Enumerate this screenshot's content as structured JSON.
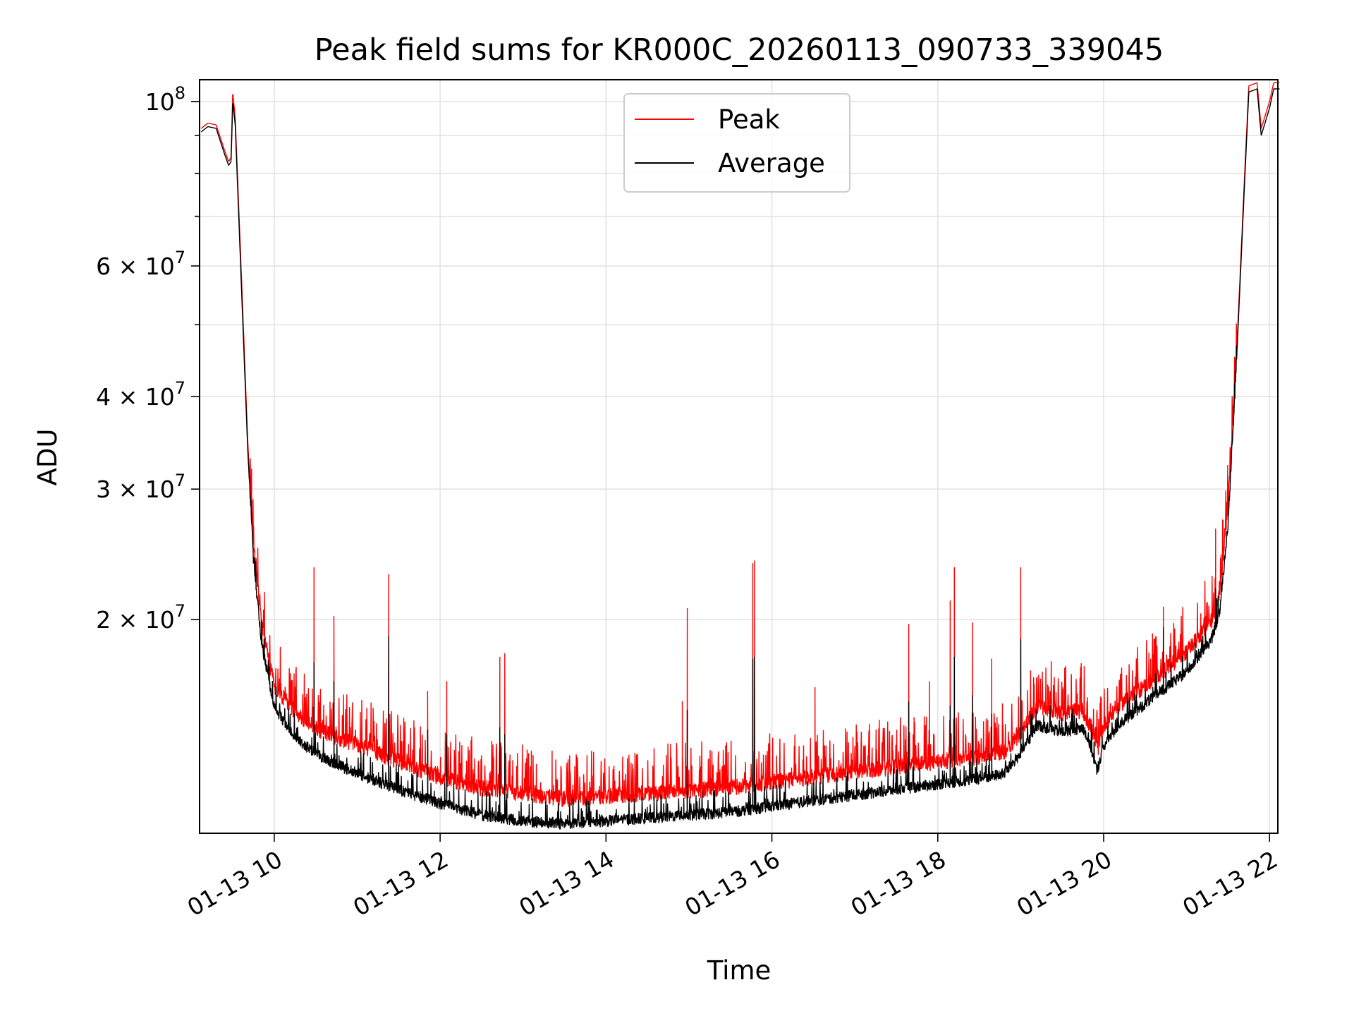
{
  "chart_data": {
    "type": "line",
    "title": "Peak field sums for KR000C_20260113_090733_339045",
    "xlabel": "Time",
    "ylabel": "ADU",
    "y_scale": "log",
    "xlim_hours": [
      9.1,
      22.1
    ],
    "ylim": [
      10300000,
      107000000
    ],
    "grid": true,
    "legend_position": "upper center",
    "x_ticks": [
      {
        "value": 10,
        "label": "01-13 10"
      },
      {
        "value": 12,
        "label": "01-13 12"
      },
      {
        "value": 14,
        "label": "01-13 14"
      },
      {
        "value": 16,
        "label": "01-13 16"
      },
      {
        "value": 18,
        "label": "01-13 18"
      },
      {
        "value": 20,
        "label": "01-13 20"
      },
      {
        "value": 22,
        "label": "01-13 22"
      }
    ],
    "y_ticks": [
      {
        "value": 100000000,
        "base": "10",
        "exp": "8"
      },
      {
        "value": 60000000,
        "base": "6 × 10",
        "exp": "7"
      },
      {
        "value": 40000000,
        "base": "4 × 10",
        "exp": "7"
      },
      {
        "value": 30000000,
        "base": "3 × 10",
        "exp": "7"
      },
      {
        "value": 20000000,
        "base": "2 × 10",
        "exp": "7"
      }
    ],
    "y_minor_ticks": [
      90000000,
      80000000,
      70000000,
      50000000
    ],
    "series": [
      {
        "name": "Peak",
        "color": "#ff0000",
        "baseline": [
          [
            9.12,
            92000000
          ],
          [
            9.2,
            93500000
          ],
          [
            9.3,
            93000000
          ],
          [
            9.4,
            86000000
          ],
          [
            9.45,
            83000000
          ],
          [
            9.48,
            84000000
          ],
          [
            9.5,
            103000000
          ],
          [
            9.53,
            95000000
          ],
          [
            9.6,
            60000000
          ],
          [
            9.68,
            35000000
          ],
          [
            9.75,
            25000000
          ],
          [
            9.85,
            19500000
          ],
          [
            10.0,
            16200000
          ],
          [
            10.3,
            14700000
          ],
          [
            10.6,
            14000000
          ],
          [
            11.0,
            13500000
          ],
          [
            11.5,
            12800000
          ],
          [
            12.0,
            12200000
          ],
          [
            12.5,
            11800000
          ],
          [
            13.0,
            11600000
          ],
          [
            13.5,
            11400000
          ],
          [
            14.0,
            11500000
          ],
          [
            14.5,
            11600000
          ],
          [
            15.0,
            11700000
          ],
          [
            15.5,
            11800000
          ],
          [
            16.0,
            12000000
          ],
          [
            16.5,
            12200000
          ],
          [
            17.0,
            12400000
          ],
          [
            17.5,
            12600000
          ],
          [
            18.0,
            12800000
          ],
          [
            18.5,
            13000000
          ],
          [
            18.8,
            13200000
          ],
          [
            19.0,
            14000000
          ],
          [
            19.2,
            15200000
          ],
          [
            19.5,
            14900000
          ],
          [
            19.75,
            15000000
          ],
          [
            19.85,
            14200000
          ],
          [
            19.92,
            13200000
          ],
          [
            20.0,
            14300000
          ],
          [
            20.2,
            15300000
          ],
          [
            20.5,
            16200000
          ],
          [
            21.0,
            18000000
          ],
          [
            21.3,
            19800000
          ],
          [
            21.4,
            21500000
          ],
          [
            21.5,
            28000000
          ],
          [
            21.6,
            45000000
          ],
          [
            21.7,
            80000000
          ],
          [
            21.75,
            105000000
          ],
          [
            21.85,
            106000000
          ],
          [
            21.9,
            92000000
          ],
          [
            22.0,
            100000000
          ],
          [
            22.05,
            106000000
          ],
          [
            22.12,
            106000000
          ]
        ],
        "spikes": [
          [
            10.48,
            23500000
          ],
          [
            10.72,
            20200000
          ],
          [
            11.38,
            23000000
          ],
          [
            11.85,
            16000000
          ],
          [
            12.08,
            16500000
          ],
          [
            12.72,
            17800000
          ],
          [
            12.78,
            18000000
          ],
          [
            13.1,
            13300000
          ],
          [
            13.35,
            13300000
          ],
          [
            14.92,
            15500000
          ],
          [
            14.98,
            20700000
          ],
          [
            15.77,
            23800000
          ],
          [
            15.79,
            24000000
          ],
          [
            16.52,
            16200000
          ],
          [
            17.65,
            19700000
          ],
          [
            17.9,
            16500000
          ],
          [
            18.15,
            21200000
          ],
          [
            18.2,
            23500000
          ],
          [
            18.42,
            19800000
          ],
          [
            18.65,
            17700000
          ],
          [
            19.0,
            23500000
          ],
          [
            20.72,
            20800000
          ],
          [
            21.35,
            26500000
          ]
        ]
      },
      {
        "name": "Average",
        "color": "#000000",
        "baseline": [
          [
            9.12,
            91000000
          ],
          [
            9.2,
            92500000
          ],
          [
            9.3,
            92000000
          ],
          [
            9.4,
            85000000
          ],
          [
            9.45,
            82000000
          ],
          [
            9.48,
            83000000
          ],
          [
            9.5,
            100000000
          ],
          [
            9.53,
            93000000
          ],
          [
            9.6,
            58000000
          ],
          [
            9.68,
            34000000
          ],
          [
            9.75,
            24000000
          ],
          [
            9.85,
            18500000
          ],
          [
            10.0,
            15200000
          ],
          [
            10.3,
            13700000
          ],
          [
            10.6,
            13000000
          ],
          [
            11.0,
            12400000
          ],
          [
            11.5,
            11800000
          ],
          [
            12.0,
            11300000
          ],
          [
            12.5,
            10900000
          ],
          [
            13.0,
            10700000
          ],
          [
            13.5,
            10600000
          ],
          [
            14.0,
            10700000
          ],
          [
            14.5,
            10800000
          ],
          [
            15.0,
            10900000
          ],
          [
            15.5,
            11000000
          ],
          [
            16.0,
            11200000
          ],
          [
            16.5,
            11400000
          ],
          [
            17.0,
            11600000
          ],
          [
            17.5,
            11800000
          ],
          [
            18.0,
            12000000
          ],
          [
            18.5,
            12200000
          ],
          [
            18.8,
            12400000
          ],
          [
            19.0,
            13200000
          ],
          [
            19.2,
            14400000
          ],
          [
            19.5,
            14100000
          ],
          [
            19.75,
            14300000
          ],
          [
            19.85,
            13400000
          ],
          [
            19.92,
            12500000
          ],
          [
            20.0,
            13500000
          ],
          [
            20.2,
            14500000
          ],
          [
            20.5,
            15400000
          ],
          [
            21.0,
            17000000
          ],
          [
            21.3,
            18800000
          ],
          [
            21.4,
            20500000
          ],
          [
            21.5,
            27000000
          ],
          [
            21.6,
            44000000
          ],
          [
            21.7,
            78000000
          ],
          [
            21.75,
            103000000
          ],
          [
            21.85,
            104000000
          ],
          [
            21.9,
            90000000
          ],
          [
            22.0,
            98000000
          ],
          [
            22.05,
            104000000
          ],
          [
            22.12,
            104000000
          ]
        ],
        "spikes": [
          [
            10.48,
            17500000
          ],
          [
            10.72,
            16500000
          ],
          [
            11.38,
            19000000
          ],
          [
            11.85,
            14200000
          ],
          [
            12.08,
            14000000
          ],
          [
            12.72,
            14300000
          ],
          [
            12.78,
            14000000
          ],
          [
            14.98,
            15100000
          ],
          [
            15.77,
            17700000
          ],
          [
            15.79,
            17800000
          ],
          [
            17.65,
            15500000
          ],
          [
            18.15,
            15300000
          ],
          [
            18.2,
            17800000
          ],
          [
            18.42,
            15800000
          ],
          [
            18.65,
            14900000
          ],
          [
            19.0,
            18800000
          ],
          [
            20.72,
            19500000
          ],
          [
            21.35,
            22000000
          ]
        ]
      }
    ]
  }
}
